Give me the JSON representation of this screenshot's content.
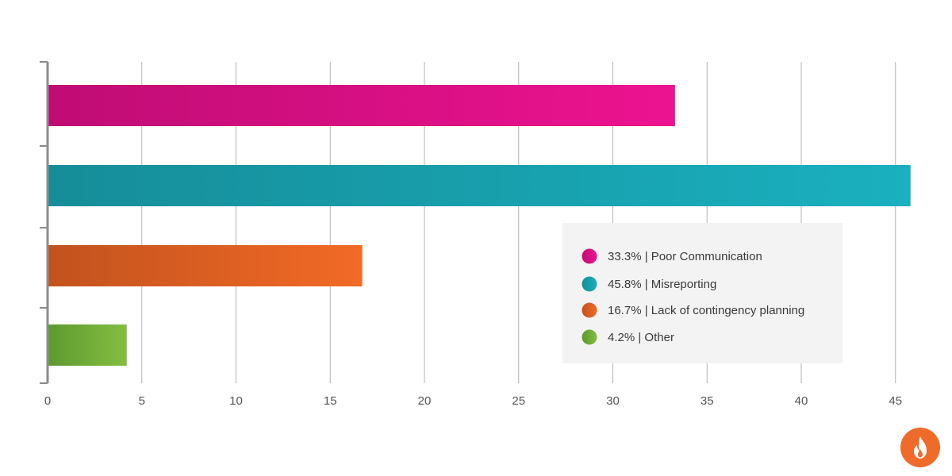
{
  "chart_data": {
    "type": "bar",
    "orientation": "horizontal",
    "title": "",
    "xlabel": "",
    "ylabel": "",
    "xlim": [
      0,
      46
    ],
    "x_ticks": [
      0,
      5,
      10,
      15,
      20,
      25,
      30,
      35,
      40,
      45
    ],
    "grid": "vertical",
    "legend_position": "right",
    "series": [
      {
        "name": "Poor Communication",
        "value": 33.3,
        "label": "33.3%",
        "color_start": "#bf0c74",
        "color_end": "#ed1390"
      },
      {
        "name": "Misreporting",
        "value": 45.8,
        "label": "45.8%",
        "color_start": "#168d99",
        "color_end": "#1ab0bf"
      },
      {
        "name": "Lack of contingency planning",
        "value": 16.7,
        "label": "16.7%",
        "color_start": "#c2521e",
        "color_end": "#f26a26"
      },
      {
        "name": "Other",
        "value": 4.2,
        "label": "4.2%",
        "color_start": "#5c9a30",
        "color_end": "#84bd40"
      }
    ]
  },
  "logo": {
    "icon": "flame-icon",
    "color": "#ef6b2a"
  }
}
